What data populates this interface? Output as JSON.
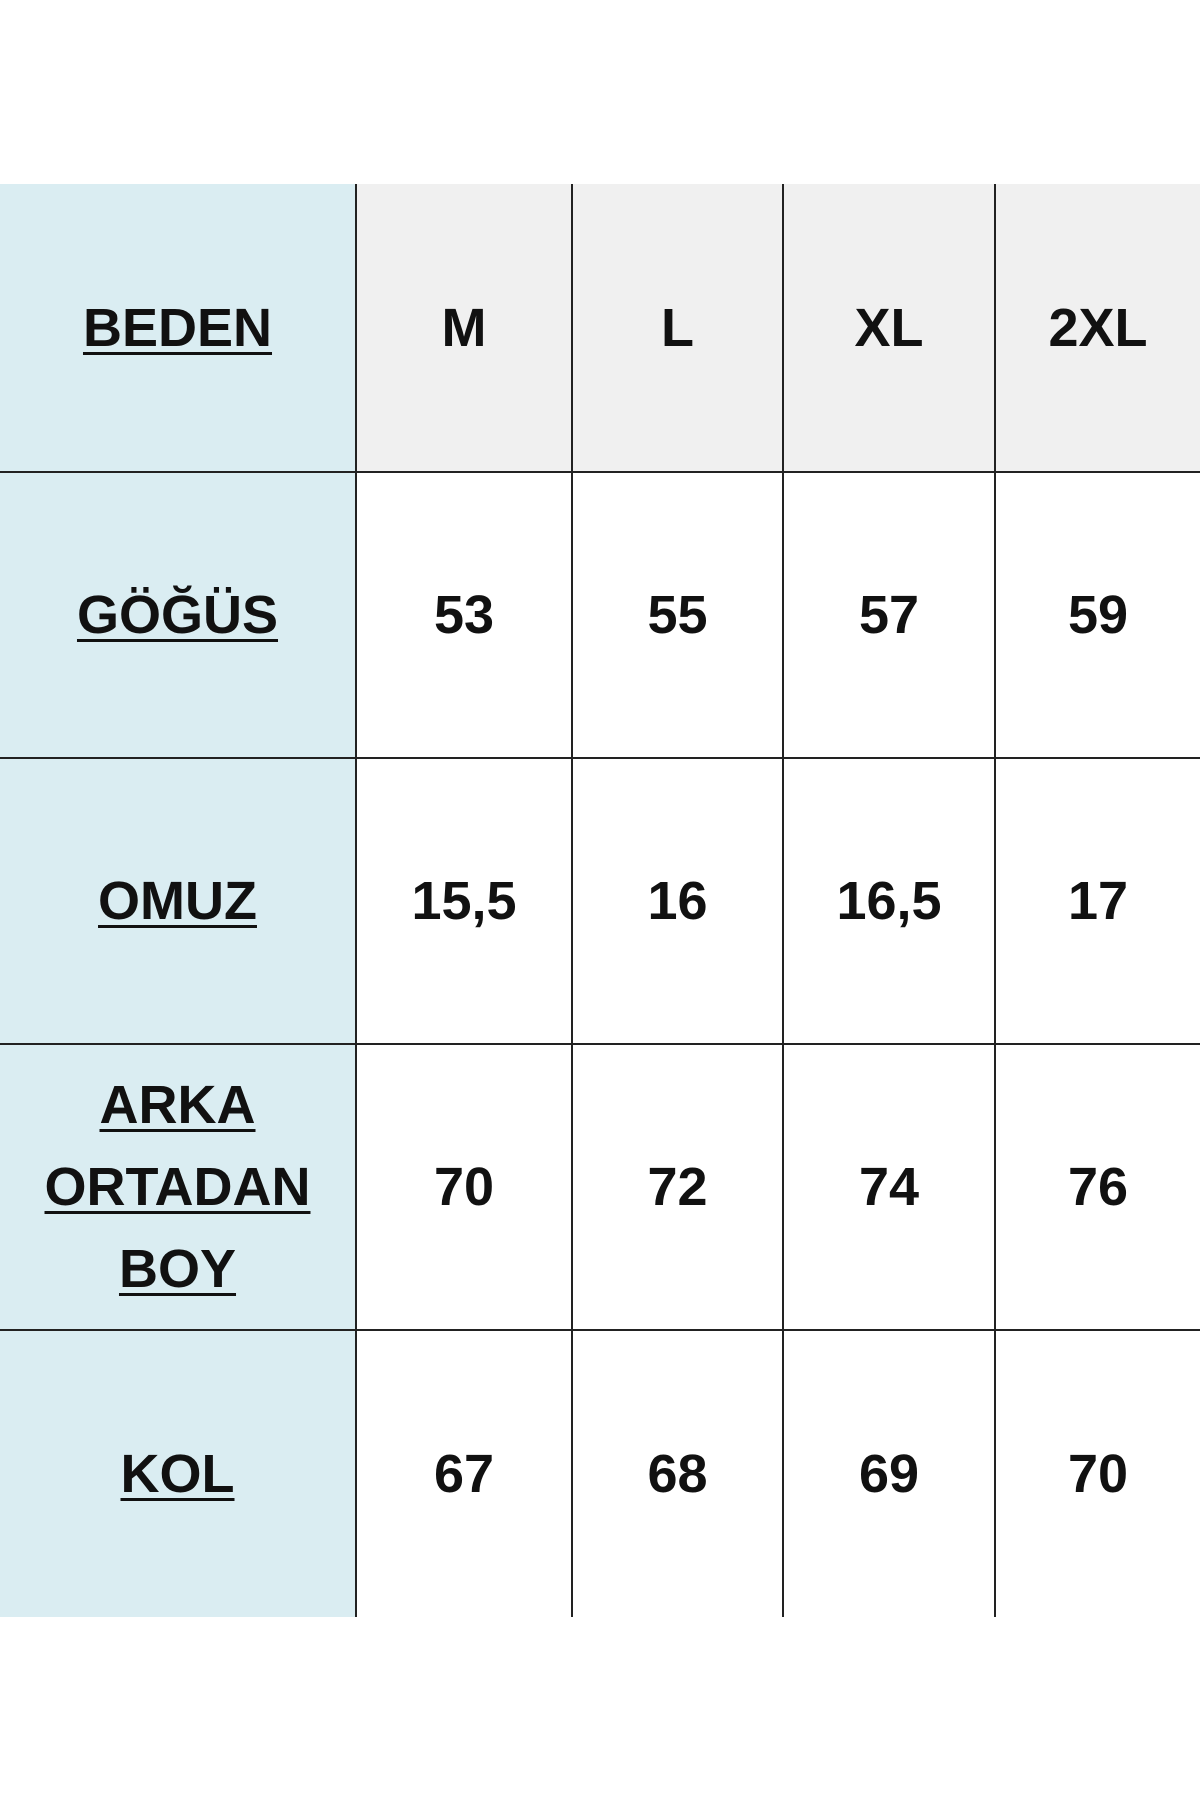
{
  "header": {
    "label": "BEDEN",
    "sizes": [
      "M",
      "L",
      "XL",
      "2XL"
    ]
  },
  "rows": [
    {
      "label": [
        "GÖĞÜS"
      ],
      "values": [
        "53",
        "55",
        "57",
        "59"
      ]
    },
    {
      "label": [
        "OMUZ"
      ],
      "values": [
        "15,5",
        "16",
        "16,5",
        "17"
      ]
    },
    {
      "label": [
        "ARKA",
        "ORTADAN",
        "BOY"
      ],
      "values": [
        "70",
        "72",
        "74",
        "76"
      ]
    },
    {
      "label": [
        "KOL"
      ],
      "values": [
        "67",
        "68",
        "69",
        "70"
      ]
    }
  ],
  "colors": {
    "label_column": "#daedf2",
    "header_row": "#f0f0f0",
    "grid": "#222222"
  }
}
